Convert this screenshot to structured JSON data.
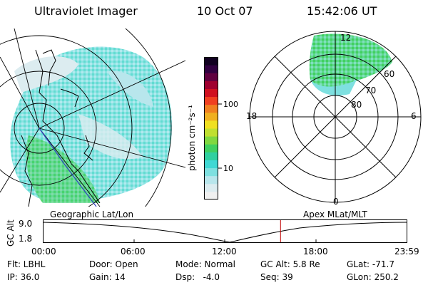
{
  "header": {
    "instrument": "Ultraviolet Imager",
    "date": "10 Oct 07",
    "time": "15:42:06 UT"
  },
  "colorbar": {
    "unit_label": "photon cm⁻²s⁻¹",
    "ticks": [
      {
        "label": "100",
        "value": 100
      },
      {
        "label": "10",
        "value": 10
      }
    ],
    "colors": [
      "#f0f0f0",
      "#dcecf0",
      "#b8e6ec",
      "#7ee0e0",
      "#40d8d4",
      "#30d0a0",
      "#40d060",
      "#80d840",
      "#c0e030",
      "#f0e020",
      "#f0b020",
      "#f08020",
      "#f04020",
      "#d01020",
      "#a00030",
      "#600040",
      "#300040",
      "#100020"
    ]
  },
  "polar_plot": {
    "mlt_labels": [
      "12",
      "6",
      "18",
      "0"
    ],
    "mlat_labels": [
      "60",
      "70",
      "80"
    ]
  },
  "timeline": {
    "left_label": "Geographic Lat/Lon",
    "right_label": "Apex MLat/MLT",
    "ylabel": "GC Alt",
    "ytick_top": "9.0",
    "ytick_bottom": "1.8",
    "time_ticks": [
      "00:00",
      "06:00",
      "12:00",
      "18:00",
      "23:59"
    ],
    "current_time_fraction": 0.6535
  },
  "status": {
    "flt": "Flt: LBHL",
    "ip": "IP: 36.0",
    "door": "Door: Open",
    "gain": "Gain: 14",
    "mode": "Mode: Normal",
    "dsp": "Dsp:   -4.0",
    "gcalt": "GC Alt: 5.8 Re",
    "seq": "Seq: 39",
    "glat": "GLat: -71.7",
    "glon": "GLon: 250.2"
  },
  "colors": {
    "cyan": "#7ee0e0",
    "green": "#40d060",
    "time_marker": "#c00000",
    "track": "#3040c0"
  }
}
